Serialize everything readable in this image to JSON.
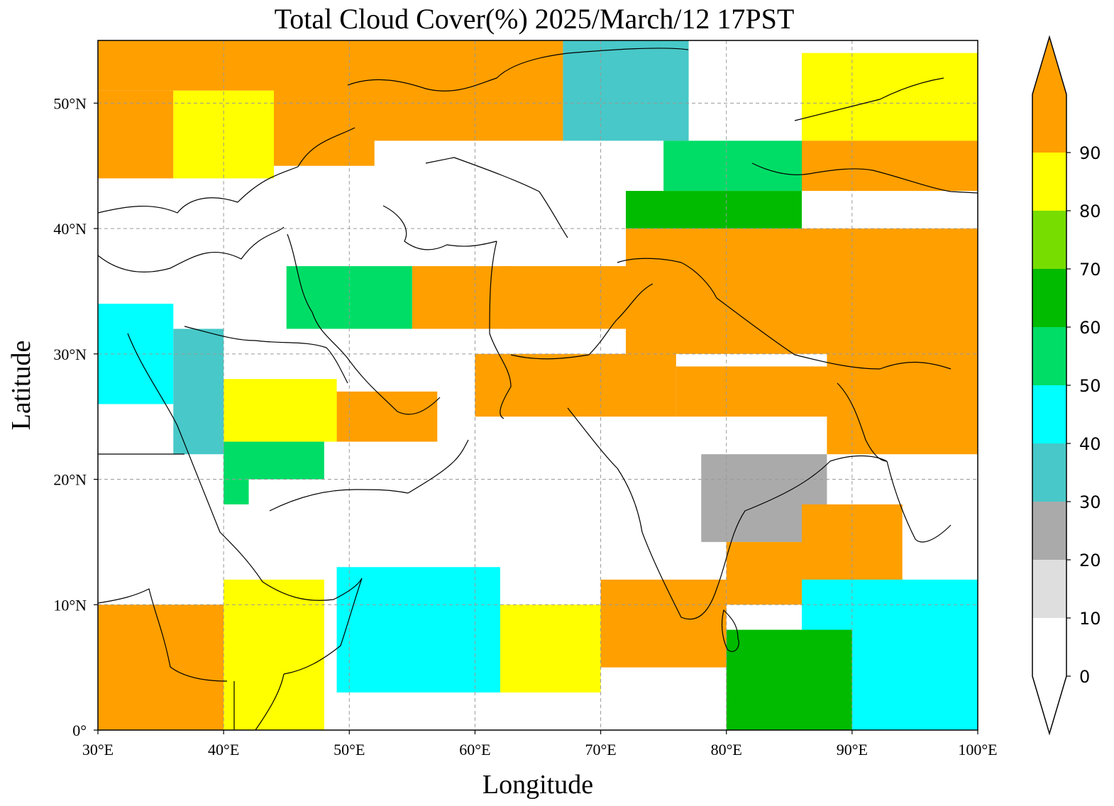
{
  "title": "Total Cloud Cover(%)  2025/March/12 17PST",
  "xlabel": "Longitude",
  "ylabel": "Latitude",
  "x_ticks": [
    {
      "value": 30,
      "label": "30°E"
    },
    {
      "value": 40,
      "label": "40°E"
    },
    {
      "value": 50,
      "label": "50°E"
    },
    {
      "value": 60,
      "label": "60°E"
    },
    {
      "value": 70,
      "label": "70°E"
    },
    {
      "value": 80,
      "label": "80°E"
    },
    {
      "value": 90,
      "label": "90°E"
    },
    {
      "value": 100,
      "label": "100°E"
    }
  ],
  "y_ticks": [
    {
      "value": 0,
      "label": "0°"
    },
    {
      "value": 10,
      "label": "10°N"
    },
    {
      "value": 20,
      "label": "20°N"
    },
    {
      "value": 30,
      "label": "30°N"
    },
    {
      "value": 40,
      "label": "40°N"
    },
    {
      "value": 50,
      "label": "50°N"
    }
  ],
  "extent": {
    "lon": [
      30,
      100
    ],
    "lat": [
      0,
      55
    ]
  },
  "colorbar": {
    "levels": [
      0,
      10,
      20,
      30,
      40,
      50,
      60,
      70,
      80,
      90
    ],
    "colors": [
      "#ffffff",
      "#dedede",
      "#aaaaaa",
      "#48c8c8",
      "#00ffff",
      "#00dd66",
      "#00bb00",
      "#77dd00",
      "#ffff00",
      "#ff9f00"
    ],
    "under_color": "#ffffff",
    "over_color": "#ff9f00",
    "extend": "both"
  },
  "chart_data": {
    "type": "heatmap",
    "title": "Total Cloud Cover(%)  2025/March/12 17PST",
    "xlabel": "Longitude",
    "ylabel": "Latitude",
    "xlim": [
      30,
      100
    ],
    "ylim": [
      0,
      55
    ],
    "grid": true,
    "value_units": "%",
    "regions": [
      {
        "lon": [
          30,
          44
        ],
        "lat": [
          51,
          55
        ],
        "v": 95
      },
      {
        "lon": [
          44,
          58
        ],
        "lat": [
          47,
          55
        ],
        "v": 95
      },
      {
        "lon": [
          58,
          67
        ],
        "lat": [
          47,
          55
        ],
        "v": 95
      },
      {
        "lon": [
          30,
          36
        ],
        "lat": [
          44,
          51
        ],
        "v": 95
      },
      {
        "lon": [
          36,
          44
        ],
        "lat": [
          44,
          51
        ],
        "v": 80
      },
      {
        "lon": [
          44,
          52
        ],
        "lat": [
          45,
          50
        ],
        "v": 95
      },
      {
        "lon": [
          67,
          77
        ],
        "lat": [
          47,
          55
        ],
        "v": 35
      },
      {
        "lon": [
          86,
          100
        ],
        "lat": [
          47,
          54
        ],
        "v": 85
      },
      {
        "lon": [
          86,
          100
        ],
        "lat": [
          43,
          47
        ],
        "v": 95
      },
      {
        "lon": [
          75,
          86
        ],
        "lat": [
          43,
          47
        ],
        "v": 55
      },
      {
        "lon": [
          72,
          86
        ],
        "lat": [
          40,
          43
        ],
        "v": 65
      },
      {
        "lon": [
          72,
          100
        ],
        "lat": [
          30,
          40
        ],
        "v": 95
      },
      {
        "lon": [
          62,
          72
        ],
        "lat": [
          32,
          37
        ],
        "v": 95
      },
      {
        "lon": [
          55,
          63
        ],
        "lat": [
          32,
          37
        ],
        "v": 90
      },
      {
        "lon": [
          45,
          55
        ],
        "lat": [
          32,
          37
        ],
        "v": 55
      },
      {
        "lon": [
          60,
          76
        ],
        "lat": [
          25,
          30
        ],
        "v": 95
      },
      {
        "lon": [
          76,
          90
        ],
        "lat": [
          25,
          29
        ],
        "v": 90
      },
      {
        "lon": [
          88,
          100
        ],
        "lat": [
          22,
          30
        ],
        "v": 95
      },
      {
        "lon": [
          49,
          57
        ],
        "lat": [
          23,
          27
        ],
        "v": 95
      },
      {
        "lon": [
          40,
          49
        ],
        "lat": [
          23,
          28
        ],
        "v": 85
      },
      {
        "lon": [
          40,
          48
        ],
        "lat": [
          18,
          23
        ],
        "v": 55
      },
      {
        "lon": [
          30,
          36
        ],
        "lat": [
          26,
          34
        ],
        "v": 40
      },
      {
        "lon": [
          36,
          40
        ],
        "lat": [
          22,
          32
        ],
        "v": 35
      },
      {
        "lon": [
          42,
          52
        ],
        "lat": [
          13,
          20
        ],
        "v": 8
      },
      {
        "lon": [
          60,
          78
        ],
        "lat": [
          16,
          24
        ],
        "v": 5
      },
      {
        "lon": [
          78,
          88
        ],
        "lat": [
          15,
          22
        ],
        "v": 25
      },
      {
        "lon": [
          86,
          94
        ],
        "lat": [
          12,
          18
        ],
        "v": 95
      },
      {
        "lon": [
          80,
          86
        ],
        "lat": [
          10,
          15
        ],
        "v": 95
      },
      {
        "lon": [
          70,
          80
        ],
        "lat": [
          5,
          12
        ],
        "v": 95
      },
      {
        "lon": [
          62,
          70
        ],
        "lat": [
          3,
          10
        ],
        "v": 85
      },
      {
        "lon": [
          49,
          62
        ],
        "lat": [
          3,
          13
        ],
        "v": 45
      },
      {
        "lon": [
          30,
          40
        ],
        "lat": [
          0,
          10
        ],
        "v": 95
      },
      {
        "lon": [
          40,
          48
        ],
        "lat": [
          0,
          12
        ],
        "v": 85
      },
      {
        "lon": [
          86,
          100
        ],
        "lat": [
          0,
          12
        ],
        "v": 45
      },
      {
        "lon": [
          80,
          90
        ],
        "lat": [
          0,
          8
        ],
        "v": 60
      }
    ]
  }
}
